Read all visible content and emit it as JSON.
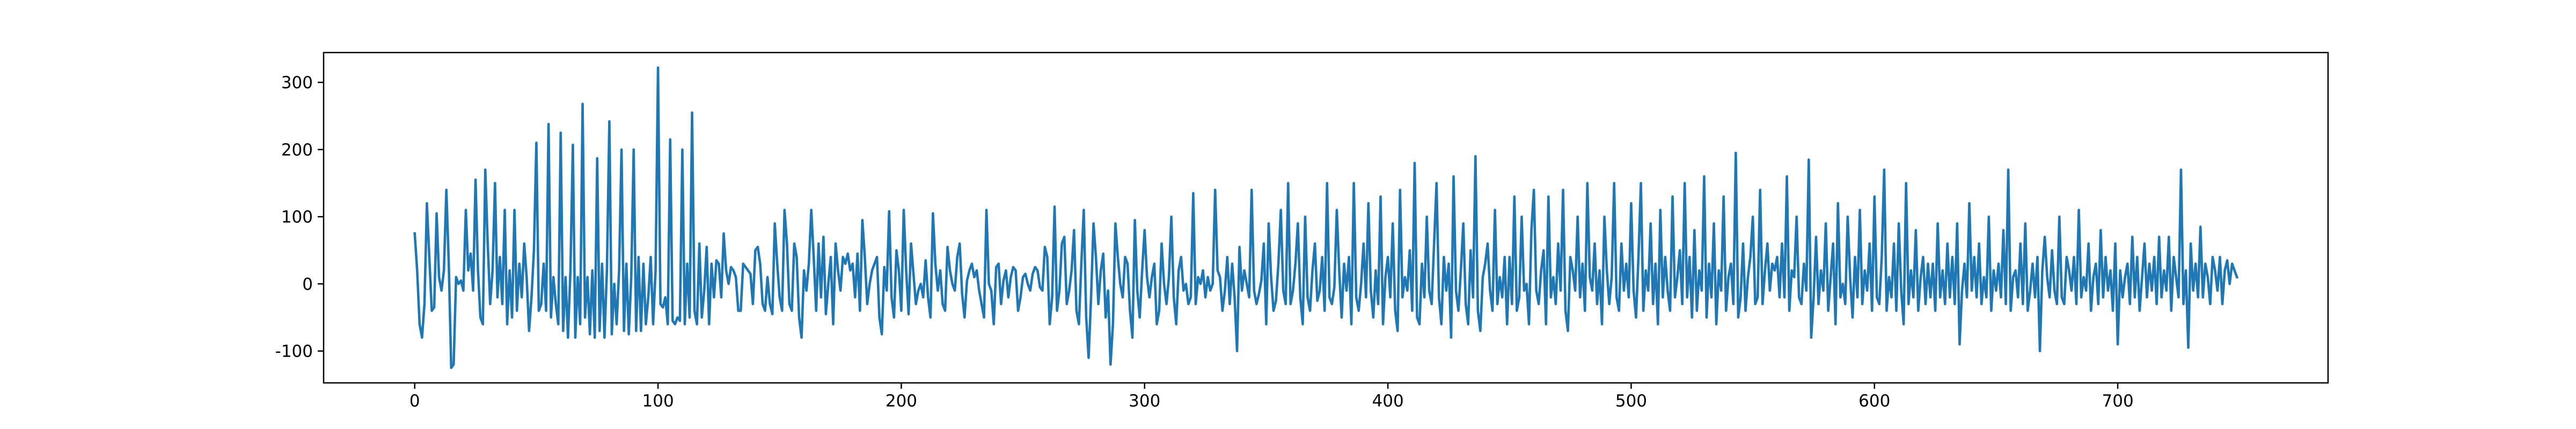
{
  "chart_data": {
    "type": "line",
    "color": "#1f77b4",
    "xlim": [
      -37.45,
      786.45
    ],
    "xticks": [
      0,
      100,
      200,
      300,
      400,
      500,
      600,
      700
    ],
    "ylim": [
      -147.4,
      344.4
    ],
    "yticks": [
      -100,
      0,
      100,
      200,
      300
    ],
    "values": [
      75,
      20,
      -60,
      -80,
      -30,
      120,
      40,
      -40,
      -35,
      105,
      10,
      -10,
      20,
      140,
      30,
      -125,
      -120,
      10,
      0,
      5,
      -10,
      110,
      20,
      45,
      -10,
      155,
      20,
      -50,
      -60,
      170,
      60,
      -30,
      20,
      150,
      -20,
      40,
      -30,
      110,
      -60,
      20,
      -50,
      110,
      -40,
      30,
      -20,
      60,
      10,
      -70,
      -20,
      50,
      210,
      -40,
      -30,
      30,
      -40,
      238,
      -50,
      10,
      -30,
      -60,
      225,
      -70,
      10,
      -80,
      20,
      207,
      -80,
      10,
      -60,
      268,
      -50,
      10,
      -75,
      20,
      -80,
      187,
      -70,
      30,
      -80,
      20,
      242,
      -75,
      0,
      -60,
      20,
      200,
      -70,
      30,
      -75,
      10,
      200,
      -70,
      40,
      -70,
      30,
      -60,
      -20,
      40,
      -60,
      20,
      322,
      -30,
      -35,
      -20,
      -60,
      215,
      -55,
      -60,
      -50,
      -55,
      200,
      -60,
      30,
      -50,
      255,
      -40,
      -60,
      60,
      -50,
      -10,
      55,
      -60,
      30,
      -20,
      35,
      30,
      -20,
      75,
      20,
      0,
      25,
      20,
      10,
      -40,
      -40,
      30,
      25,
      20,
      15,
      -30,
      50,
      55,
      30,
      -30,
      -40,
      10,
      -30,
      -45,
      90,
      30,
      -20,
      -40,
      110,
      60,
      -30,
      -40,
      60,
      40,
      -50,
      -80,
      20,
      -10,
      30,
      110,
      40,
      -40,
      60,
      -20,
      70,
      -45,
      0,
      40,
      -60,
      60,
      20,
      -10,
      40,
      30,
      45,
      20,
      30,
      -20,
      45,
      -40,
      95,
      40,
      -30,
      0,
      20,
      30,
      40,
      -50,
      -75,
      25,
      -10,
      108,
      -20,
      -50,
      50,
      20,
      -40,
      110,
      20,
      -45,
      60,
      15,
      -30,
      -10,
      0,
      -20,
      35,
      -20,
      -50,
      105,
      30,
      -10,
      20,
      -30,
      -40,
      55,
      20,
      0,
      -10,
      40,
      60,
      -15,
      -50,
      5,
      20,
      30,
      10,
      20,
      -10,
      -30,
      -50,
      110,
      0,
      -10,
      -60,
      25,
      30,
      -30,
      5,
      20,
      -20,
      10,
      25,
      20,
      -40,
      -20,
      10,
      15,
      0,
      -10,
      15,
      25,
      20,
      -5,
      -10,
      55,
      40,
      -60,
      -20,
      115,
      -40,
      -10,
      60,
      70,
      -30,
      -10,
      20,
      80,
      -40,
      -60,
      30,
      110,
      -50,
      -110,
      -20,
      90,
      40,
      -30,
      20,
      45,
      -50,
      -10,
      -120,
      -60,
      90,
      40,
      0,
      -20,
      40,
      30,
      -40,
      -80,
      95,
      -10,
      -50,
      20,
      80,
      10,
      -20,
      10,
      30,
      -60,
      -40,
      60,
      0,
      -30,
      10,
      100,
      -20,
      -60,
      20,
      40,
      -10,
      0,
      -30,
      -20,
      135,
      -30,
      10,
      0,
      20,
      -20,
      10,
      -10,
      0,
      140,
      20,
      10,
      -40,
      -10,
      40,
      -30,
      30,
      -20,
      -100,
      55,
      -10,
      20,
      0,
      -20,
      140,
      -10,
      -30,
      -15,
      5,
      60,
      -60,
      90,
      10,
      -40,
      -25,
      30,
      110,
      -10,
      -30,
      150,
      -30,
      -10,
      30,
      90,
      -20,
      -60,
      100,
      -20,
      -40,
      20,
      60,
      -25,
      -10,
      40,
      -40,
      150,
      -20,
      -30,
      -5,
      110,
      20,
      -50,
      30,
      -10,
      40,
      -60,
      150,
      -20,
      -40,
      0,
      60,
      -20,
      120,
      -10,
      -50,
      20,
      -30,
      130,
      -60,
      10,
      40,
      -20,
      90,
      -40,
      -70,
      140,
      -20,
      10,
      -10,
      50,
      -40,
      180,
      -50,
      -60,
      30,
      -20,
      100,
      -10,
      -30,
      60,
      150,
      -20,
      -60,
      40,
      -10,
      30,
      -80,
      160,
      -10,
      -40,
      20,
      90,
      -30,
      -60,
      50,
      -20,
      190,
      -40,
      -70,
      10,
      30,
      60,
      -10,
      -40,
      110,
      -30,
      10,
      -20,
      40,
      -60,
      40,
      -30,
      130,
      -40,
      -20,
      100,
      -10,
      0,
      -60,
      80,
      140,
      -10,
      -30,
      20,
      50,
      -60,
      130,
      -20,
      10,
      -30,
      60,
      -10,
      140,
      -40,
      -70,
      40,
      20,
      -10,
      100,
      -20,
      30,
      -40,
      150,
      10,
      -10,
      60,
      -30,
      20,
      -60,
      100,
      20,
      -30,
      10,
      150,
      -20,
      -40,
      60,
      -10,
      30,
      -20,
      120,
      -10,
      -50,
      40,
      150,
      -40,
      20,
      -10,
      90,
      -30,
      30,
      -60,
      110,
      -20,
      40,
      -10,
      -40,
      130,
      -20,
      10,
      50,
      -30,
      150,
      -20,
      40,
      -50,
      80,
      -40,
      20,
      -10,
      160,
      -50,
      30,
      -20,
      90,
      -60,
      20,
      -10,
      130,
      -40,
      10,
      30,
      -30,
      195,
      -50,
      -20,
      60,
      -40,
      10,
      40,
      100,
      -30,
      -20,
      140,
      -30,
      20,
      60,
      -10,
      30,
      20,
      40,
      -20,
      60,
      -20,
      160,
      -40,
      20,
      10,
      100,
      -20,
      -30,
      30,
      -10,
      185,
      -80,
      -20,
      70,
      -30,
      20,
      -10,
      90,
      -40,
      10,
      60,
      -60,
      120,
      -20,
      0,
      -30,
      100,
      10,
      -50,
      40,
      -20,
      110,
      -30,
      20,
      -10,
      60,
      -40,
      130,
      -20,
      -30,
      40,
      170,
      -40,
      10,
      -20,
      60,
      -40,
      90,
      -10,
      -60,
      150,
      -30,
      20,
      -20,
      80,
      -40,
      10,
      40,
      -30,
      30,
      -20,
      30,
      -40,
      90,
      -20,
      20,
      -30,
      60,
      -20,
      40,
      -30,
      90,
      -90,
      -10,
      30,
      -20,
      120,
      -10,
      40,
      -20,
      60,
      -30,
      10,
      -20,
      100,
      -40,
      20,
      -10,
      30,
      -20,
      80,
      -30,
      170,
      -40,
      10,
      20,
      -20,
      60,
      -30,
      90,
      -40,
      -10,
      30,
      -20,
      40,
      -100,
      20,
      70,
      10,
      -20,
      50,
      -10,
      -30,
      100,
      -20,
      -30,
      40,
      20,
      -10,
      40,
      -30,
      110,
      -20,
      10,
      -10,
      60,
      -40,
      10,
      30,
      -30,
      80,
      -20,
      40,
      -10,
      20,
      -40,
      60,
      -90,
      20,
      -20,
      10,
      30,
      -30,
      70,
      -20,
      40,
      -40,
      10,
      60,
      -20,
      30,
      -10,
      40,
      -30,
      70,
      -20,
      20,
      -10,
      70,
      -40,
      40,
      10,
      -20,
      170,
      -30,
      20,
      -95,
      60,
      -10,
      30,
      -20,
      85,
      -20,
      30,
      10,
      -30,
      40,
      20,
      -10,
      40,
      -30,
      20,
      35,
      0,
      30,
      20,
      10
    ]
  }
}
